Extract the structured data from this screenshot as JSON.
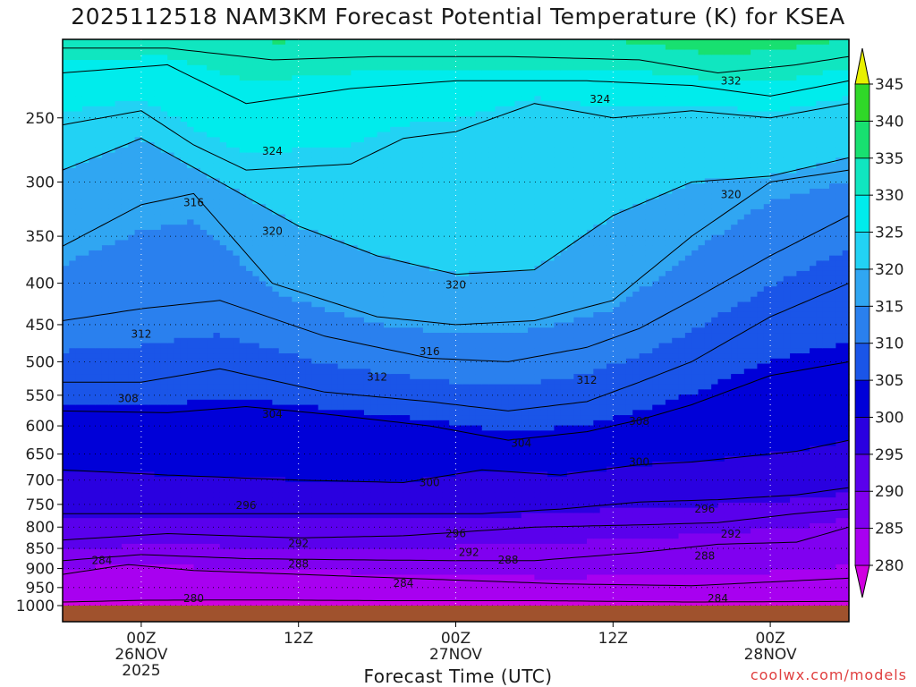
{
  "title": "2025112518 NAM3KM Forecast Potential Temperature (K) for KSEA",
  "credit": "coolwx.com/models",
  "chart_data": {
    "type": "contour",
    "title": "2025112518 NAM3KM Forecast Potential Temperature (K) for KSEA",
    "xlabel": "Forecast Time (UTC)",
    "ylabel": "",
    "x_ticks": [
      {
        "h": 6,
        "lines": [
          "00Z",
          "26NOV",
          "2025"
        ]
      },
      {
        "h": 18,
        "lines": [
          "12Z"
        ]
      },
      {
        "h": 30,
        "lines": [
          "00Z",
          "27NOV"
        ]
      },
      {
        "h": 42,
        "lines": [
          "12Z"
        ]
      },
      {
        "h": 54,
        "lines": [
          "00Z",
          "28NOV"
        ]
      }
    ],
    "xlim_hours": [
      0,
      60
    ],
    "y_ticks": [
      250,
      300,
      350,
      400,
      450,
      500,
      550,
      600,
      650,
      700,
      750,
      800,
      850,
      900,
      950,
      1000
    ],
    "ylim_hPa": [
      1000,
      200
    ],
    "y_scale": "log-pressure",
    "grid": true,
    "colorbar": {
      "levels": [
        280,
        285,
        290,
        295,
        300,
        305,
        310,
        315,
        320,
        325,
        330,
        335,
        340,
        345
      ],
      "colors": [
        "#d000e0",
        "#a800f0",
        "#8000f0",
        "#5a00ec",
        "#2a00e0",
        "#0000d8",
        "#1a55e8",
        "#2a80ee",
        "#30a6f2",
        "#22d2f4",
        "#00ecec",
        "#10e6c0",
        "#18e070",
        "#30d828",
        "#a0e800",
        "#e8f000"
      ]
    },
    "contour_interval": 4,
    "contours": [
      {
        "theta": 280,
        "points": [
          [
            0,
            990
          ],
          [
            6,
            985
          ],
          [
            15,
            984
          ],
          [
            24,
            986
          ],
          [
            36,
            986
          ],
          [
            48,
            990
          ],
          [
            60,
            988
          ]
        ]
      },
      {
        "theta": 284,
        "points": [
          [
            0,
            915
          ],
          [
            5,
            890
          ],
          [
            10,
            905
          ],
          [
            18,
            915
          ],
          [
            30,
            930
          ],
          [
            38,
            940
          ],
          [
            48,
            945
          ],
          [
            54,
            935
          ],
          [
            60,
            925
          ]
        ]
      },
      {
        "theta": 288,
        "points": [
          [
            0,
            880
          ],
          [
            6,
            865
          ],
          [
            14,
            875
          ],
          [
            22,
            878
          ],
          [
            30,
            880
          ],
          [
            36,
            880
          ],
          [
            44,
            860
          ],
          [
            50,
            840
          ],
          [
            56,
            835
          ],
          [
            60,
            800
          ]
        ]
      },
      {
        "theta": 292,
        "points": [
          [
            0,
            830
          ],
          [
            8,
            815
          ],
          [
            18,
            825
          ],
          [
            26,
            820
          ],
          [
            30,
            812
          ],
          [
            36,
            800
          ],
          [
            44,
            795
          ],
          [
            50,
            790
          ],
          [
            56,
            770
          ],
          [
            60,
            760
          ]
        ]
      },
      {
        "theta": 296,
        "points": [
          [
            0,
            770
          ],
          [
            8,
            770
          ],
          [
            18,
            770
          ],
          [
            26,
            770
          ],
          [
            32,
            770
          ],
          [
            38,
            760
          ],
          [
            44,
            745
          ],
          [
            50,
            740
          ],
          [
            56,
            730
          ],
          [
            60,
            715
          ]
        ]
      },
      {
        "theta": 300,
        "points": [
          [
            0,
            680
          ],
          [
            8,
            690
          ],
          [
            18,
            700
          ],
          [
            26,
            705
          ],
          [
            32,
            680
          ],
          [
            38,
            690
          ],
          [
            44,
            670
          ],
          [
            48,
            665
          ],
          [
            56,
            645
          ],
          [
            60,
            625
          ]
        ]
      },
      {
        "theta": 304,
        "points": [
          [
            0,
            575
          ],
          [
            8,
            578
          ],
          [
            14,
            568
          ],
          [
            20,
            580
          ],
          [
            28,
            600
          ],
          [
            34,
            625
          ],
          [
            40,
            610
          ],
          [
            44,
            590
          ],
          [
            48,
            565
          ],
          [
            54,
            520
          ],
          [
            60,
            500
          ]
        ]
      },
      {
        "theta": 308,
        "points": [
          [
            0,
            530
          ],
          [
            6,
            530
          ],
          [
            12,
            510
          ],
          [
            20,
            545
          ],
          [
            28,
            560
          ],
          [
            34,
            575
          ],
          [
            40,
            560
          ],
          [
            44,
            530
          ],
          [
            48,
            500
          ],
          [
            54,
            440
          ],
          [
            60,
            400
          ]
        ]
      },
      {
        "theta": 312,
        "points": [
          [
            0,
            445
          ],
          [
            6,
            430
          ],
          [
            12,
            420
          ],
          [
            20,
            465
          ],
          [
            28,
            495
          ],
          [
            34,
            500
          ],
          [
            40,
            480
          ],
          [
            44,
            455
          ],
          [
            48,
            420
          ],
          [
            54,
            370
          ],
          [
            60,
            330
          ]
        ]
      },
      {
        "theta": 316,
        "points": [
          [
            0,
            360
          ],
          [
            6,
            320
          ],
          [
            10,
            310
          ],
          [
            16,
            400
          ],
          [
            24,
            440
          ],
          [
            30,
            450
          ],
          [
            36,
            445
          ],
          [
            42,
            420
          ],
          [
            48,
            350
          ],
          [
            54,
            300
          ],
          [
            60,
            290
          ]
        ]
      },
      {
        "theta": 320,
        "points": [
          [
            0,
            290
          ],
          [
            6,
            265
          ],
          [
            12,
            300
          ],
          [
            18,
            340
          ],
          [
            24,
            370
          ],
          [
            30,
            390
          ],
          [
            36,
            385
          ],
          [
            42,
            330
          ],
          [
            48,
            300
          ],
          [
            54,
            295
          ],
          [
            60,
            280
          ]
        ]
      },
      {
        "theta": 324,
        "points": [
          [
            0,
            255
          ],
          [
            6,
            245
          ],
          [
            10,
            270
          ],
          [
            14,
            290
          ],
          [
            22,
            285
          ],
          [
            26,
            265
          ],
          [
            30,
            260
          ],
          [
            36,
            240
          ],
          [
            42,
            250
          ],
          [
            48,
            245
          ],
          [
            54,
            250
          ],
          [
            60,
            240
          ]
        ]
      },
      {
        "theta": 328,
        "points": [
          [
            0,
            220
          ],
          [
            8,
            215
          ],
          [
            14,
            240
          ],
          [
            22,
            230
          ],
          [
            30,
            225
          ],
          [
            40,
            225
          ],
          [
            48,
            228
          ],
          [
            54,
            235
          ],
          [
            60,
            225
          ]
        ]
      },
      {
        "theta": 332,
        "points": [
          [
            0,
            205
          ],
          [
            8,
            205
          ],
          [
            16,
            212
          ],
          [
            24,
            210
          ],
          [
            34,
            210
          ],
          [
            44,
            212
          ],
          [
            50,
            220
          ],
          [
            56,
            215
          ],
          [
            60,
            210
          ]
        ]
      }
    ],
    "contour_labels": [
      {
        "text": "280",
        "h": 10,
        "p": 980
      },
      {
        "text": "284",
        "h": 3,
        "p": 880
      },
      {
        "text": "284",
        "h": 26,
        "p": 938
      },
      {
        "text": "284",
        "h": 50,
        "p": 980
      },
      {
        "text": "288",
        "h": 18,
        "p": 888
      },
      {
        "text": "288",
        "h": 34,
        "p": 878
      },
      {
        "text": "288",
        "h": 49,
        "p": 868
      },
      {
        "text": "292",
        "h": 18,
        "p": 838
      },
      {
        "text": "292",
        "h": 31,
        "p": 860
      },
      {
        "text": "292",
        "h": 51,
        "p": 816
      },
      {
        "text": "296",
        "h": 14,
        "p": 752
      },
      {
        "text": "296",
        "h": 30,
        "p": 815
      },
      {
        "text": "296",
        "h": 49,
        "p": 760
      },
      {
        "text": "300",
        "h": 28,
        "p": 705
      },
      {
        "text": "300",
        "h": 44,
        "p": 665
      },
      {
        "text": "304",
        "h": 16,
        "p": 580
      },
      {
        "text": "304",
        "h": 35,
        "p": 630
      },
      {
        "text": "308",
        "h": 5,
        "p": 555
      },
      {
        "text": "308",
        "h": 44,
        "p": 592
      },
      {
        "text": "312",
        "h": 6,
        "p": 462
      },
      {
        "text": "312",
        "h": 24,
        "p": 522
      },
      {
        "text": "312",
        "h": 40,
        "p": 527
      },
      {
        "text": "316",
        "h": 10,
        "p": 318
      },
      {
        "text": "316",
        "h": 28,
        "p": 486
      },
      {
        "text": "320",
        "h": 16,
        "p": 345
      },
      {
        "text": "320",
        "h": 30,
        "p": 402
      },
      {
        "text": "320",
        "h": 51,
        "p": 311
      },
      {
        "text": "324",
        "h": 16,
        "p": 275
      },
      {
        "text": "324",
        "h": 41,
        "p": 237
      },
      {
        "text": "332",
        "h": 51,
        "p": 225
      }
    ],
    "ground_color": "#a0522d"
  }
}
